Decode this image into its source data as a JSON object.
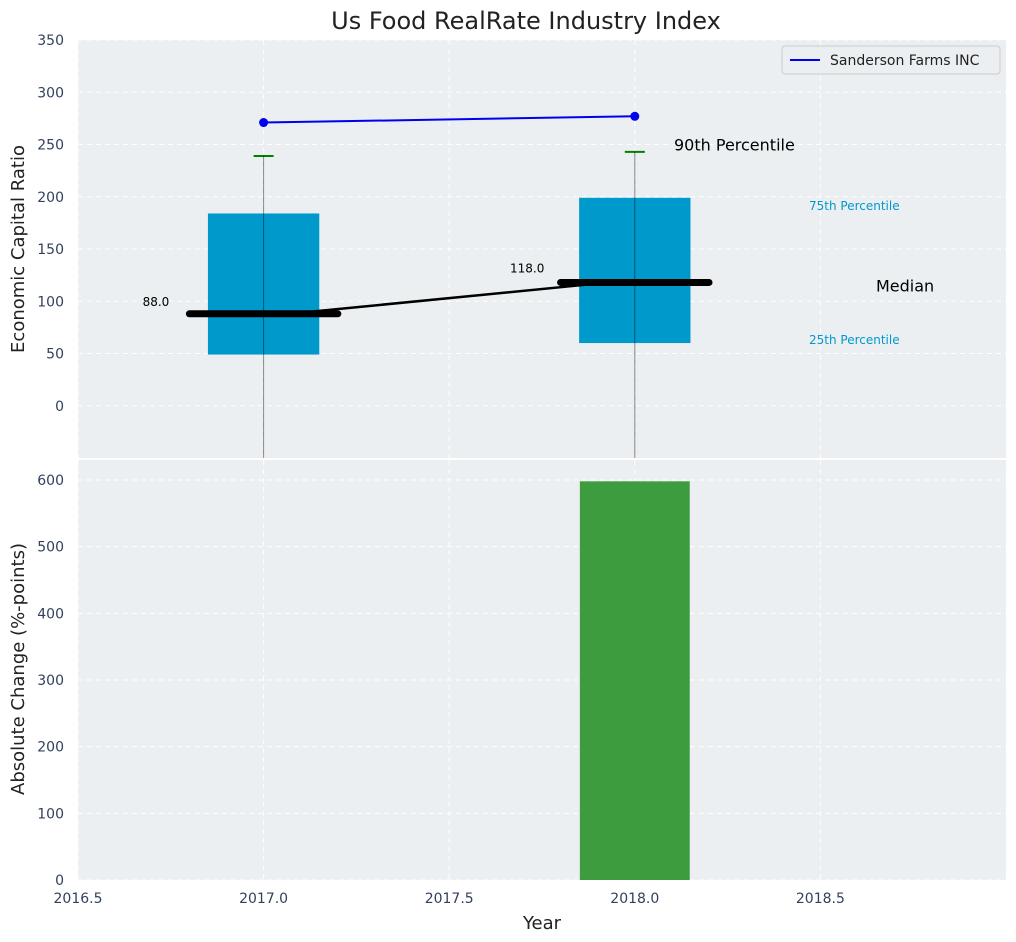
{
  "chart_data": [
    {
      "type": "box",
      "title": "Us Food RealRate Industry Index",
      "ylabel": "Economic Capital Ratio",
      "xlim": [
        2016.5,
        2019.0
      ],
      "ylim": [
        -50,
        350
      ],
      "yticks": [
        0,
        50,
        100,
        150,
        200,
        250,
        300,
        350
      ],
      "grid": true,
      "colors": {
        "box": "#0099cc",
        "whisker_cap": "#008000",
        "median": "#000000",
        "series": "#0000ee",
        "background": "#ebeff1"
      },
      "boxes": [
        {
          "x": 2017.0,
          "q1": 49,
          "median": 88,
          "q3": 184,
          "p90": 239,
          "median_label": "88.0"
        },
        {
          "x": 2018.0,
          "q1": 60,
          "median": 118,
          "q3": 199,
          "p90": 243,
          "median_label": "118.0"
        }
      ],
      "series": [
        {
          "name": "Sanderson Farms INC",
          "x": [
            2017.0,
            2018.0
          ],
          "y": [
            271,
            277
          ]
        }
      ],
      "legend": "top-right",
      "annotations": {
        "p90": "90th Percentile",
        "p75": "75th Percentile",
        "median": "Median",
        "p25": "25th Percentile"
      }
    },
    {
      "type": "bar",
      "xlabel": "Year",
      "ylabel": "Absolute Change (%-points)",
      "xlim": [
        2016.5,
        2019.0
      ],
      "ylim": [
        0,
        630
      ],
      "yticks": [
        0,
        100,
        200,
        300,
        400,
        500,
        600
      ],
      "xticks": [
        2016.5,
        2017.0,
        2017.5,
        2018.0,
        2018.5
      ],
      "xtick_labels": [
        "2016.5",
        "2017.0",
        "2017.5",
        "2018.0",
        "2018.5"
      ],
      "grid": true,
      "colors": {
        "bar": "#3d9c3d",
        "background": "#ebeff1"
      },
      "bars": [
        {
          "x": 2018.0,
          "value": 598
        }
      ]
    }
  ]
}
